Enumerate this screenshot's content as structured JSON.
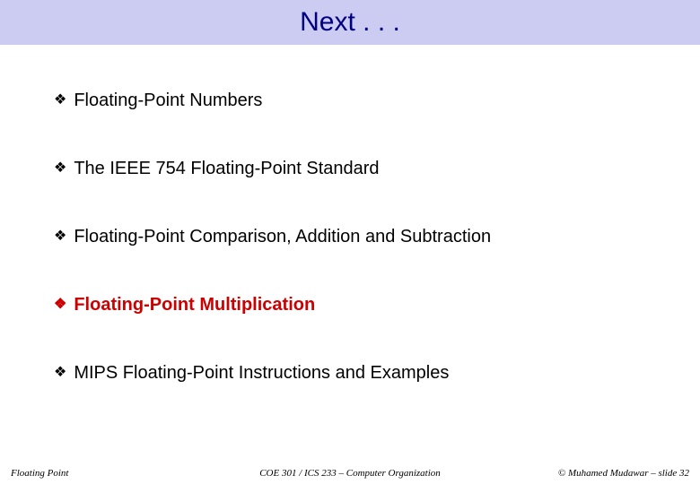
{
  "title": {
    "text": "Next . . .",
    "background_color": "#ccccf2",
    "text_color": "#000080",
    "font_family": "Comic Sans MS",
    "font_size": 30
  },
  "bullets": {
    "marker": "❖",
    "marker_color_normal": "#000000",
    "marker_color_highlight": "#cc0000",
    "items": [
      {
        "text": "Floating-Point Numbers",
        "highlighted": false
      },
      {
        "text": "The IEEE 754 Floating-Point Standard",
        "highlighted": false
      },
      {
        "text": "Floating-Point Comparison, Addition and Subtraction",
        "highlighted": false
      },
      {
        "text": "Floating-Point Multiplication",
        "highlighted": true
      },
      {
        "text": "MIPS Floating-Point Instructions and Examples",
        "highlighted": false
      }
    ]
  },
  "footer": {
    "left": "Floating Point",
    "center": "COE 301 / ICS 233 – Computer Organization",
    "right": "© Muhamed Mudawar – slide 32"
  }
}
